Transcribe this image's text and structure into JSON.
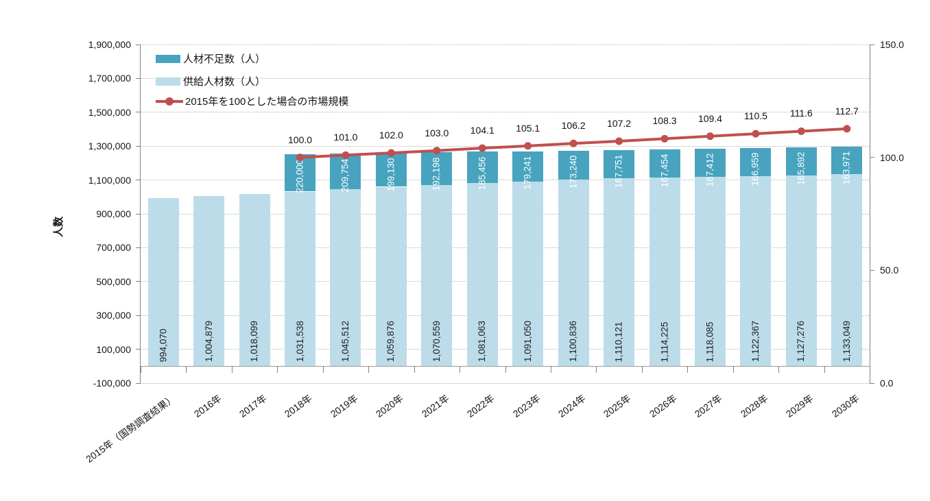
{
  "chart_data": {
    "type": "combo-stacked-bar-line",
    "grid": "horizontal dotted",
    "legend_position": "top-left inside plot",
    "categories": [
      "2015年（国勢調査結果）",
      "2016年",
      "2017年",
      "2018年",
      "2019年",
      "2020年",
      "2021年",
      "2022年",
      "2023年",
      "2024年",
      "2025年",
      "2026年",
      "2027年",
      "2028年",
      "2029年",
      "2030年"
    ],
    "series": [
      {
        "name": "人材不足数（人）",
        "type": "bar",
        "stack": "top",
        "color": "#48A3BF",
        "values": [
          null,
          null,
          null,
          220000,
          209754,
          199130,
          192198,
          185456,
          179241,
          173240,
          167751,
          167454,
          167412,
          166959,
          165892,
          163971
        ],
        "labels": [
          null,
          null,
          null,
          "220,000",
          "209,754",
          "199,130",
          "192,198",
          "185,456",
          "179,241",
          "173,240",
          "167,751",
          "167,454",
          "167,412",
          "166,959",
          "165,892",
          "163,971"
        ]
      },
      {
        "name": "供給人材数（人）",
        "type": "bar",
        "stack": "bottom",
        "color": "#BCDCE9",
        "values": [
          994070,
          1004879,
          1018099,
          1031538,
          1045512,
          1059876,
          1070559,
          1081063,
          1091050,
          1100836,
          1110121,
          1114225,
          1118085,
          1122367,
          1127276,
          1133049
        ],
        "labels": [
          "994,070",
          "1,004,879",
          "1,018,099",
          "1,031,538",
          "1,045,512",
          "1,059,876",
          "1,070,559",
          "1,081,063",
          "1,091,050",
          "1,100,836",
          "1,110,121",
          "1,114,225",
          "1,118,085",
          "1,122,367",
          "1,127,276",
          "1,133,049"
        ]
      },
      {
        "name": "2015年を100とした場合の市場規模",
        "type": "line",
        "axis": "right",
        "color": "#C0504D",
        "values": [
          null,
          null,
          null,
          100.0,
          101.0,
          102.0,
          103.0,
          104.1,
          105.1,
          106.2,
          107.2,
          108.3,
          109.4,
          110.5,
          111.6,
          112.7
        ],
        "labels": [
          null,
          null,
          null,
          "100.0",
          "101.0",
          "102.0",
          "103.0",
          "104.1",
          "105.1",
          "106.2",
          "107.2",
          "108.3",
          "109.4",
          "110.5",
          "111.6",
          "112.7"
        ]
      }
    ],
    "left_axis": {
      "title": "人数",
      "min": -100000,
      "max": 1900000,
      "step": 200000,
      "tick_values": [
        -100000,
        100000,
        300000,
        500000,
        700000,
        900000,
        1100000,
        1300000,
        1500000,
        1700000,
        1900000
      ],
      "tick_labels": [
        "-100,000",
        "100,000",
        "300,000",
        "500,000",
        "700,000",
        "900,000",
        "1,100,000",
        "1,300,000",
        "1,500,000",
        "1,700,000",
        "1,900,000"
      ]
    },
    "right_axis": {
      "min": 0,
      "max": 150,
      "step": 50,
      "tick_values": [
        0,
        50,
        100,
        150
      ],
      "tick_labels": [
        "0.0",
        "50.0",
        "100.0",
        "150.0"
      ]
    }
  }
}
